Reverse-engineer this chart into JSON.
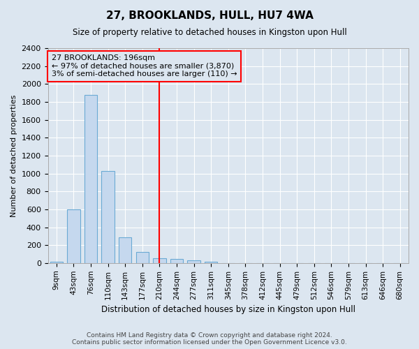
{
  "title": "27, BROOKLANDS, HULL, HU7 4WA",
  "subtitle": "Size of property relative to detached houses in Kingston upon Hull",
  "xlabel": "Distribution of detached houses by size in Kingston upon Hull",
  "ylabel": "Number of detached properties",
  "footer_line1": "Contains HM Land Registry data © Crown copyright and database right 2024.",
  "footer_line2": "Contains public sector information licensed under the Open Government Licence v3.0.",
  "categories": [
    "9sqm",
    "43sqm",
    "76sqm",
    "110sqm",
    "143sqm",
    "177sqm",
    "210sqm",
    "244sqm",
    "277sqm",
    "311sqm",
    "345sqm",
    "378sqm",
    "412sqm",
    "445sqm",
    "479sqm",
    "512sqm",
    "546sqm",
    "579sqm",
    "613sqm",
    "646sqm",
    "680sqm"
  ],
  "values": [
    18,
    600,
    1880,
    1030,
    285,
    120,
    50,
    42,
    30,
    18,
    0,
    0,
    0,
    0,
    0,
    0,
    0,
    0,
    0,
    0,
    0
  ],
  "bar_color": "#c5d8ee",
  "bar_edge_color": "#6aaad4",
  "ylim": [
    0,
    2400
  ],
  "yticks": [
    0,
    200,
    400,
    600,
    800,
    1000,
    1200,
    1400,
    1600,
    1800,
    2000,
    2200,
    2400
  ],
  "property_line_x": 6.0,
  "property_line_color": "red",
  "annotation_text": "27 BROOKLANDS: 196sqm\n← 97% of detached houses are smaller (3,870)\n3% of semi-detached houses are larger (110) →",
  "annotation_box_color": "red",
  "bg_color": "#dce6f0",
  "grid_color": "#ffffff"
}
